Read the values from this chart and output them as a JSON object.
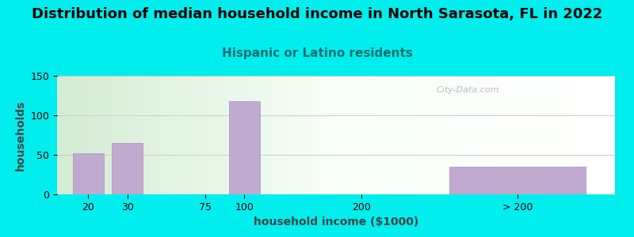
{
  "title": "Distribution of median household income in North Sarasota, FL in 2022",
  "subtitle": "Hispanic or Latino residents",
  "xlabel": "household income ($1000)",
  "ylabel": "households",
  "bg_color": "#00EEEE",
  "bar_color": "#c0aad0",
  "bar_edge_color": "#b090c0",
  "categories": [
    "20",
    "30",
    "75",
    "100",
    "200",
    "> 200"
  ],
  "values": [
    52,
    65,
    0,
    118,
    0,
    35
  ],
  "ylim": [
    0,
    150
  ],
  "yticks": [
    0,
    50,
    100,
    150
  ],
  "title_fontsize": 13,
  "subtitle_fontsize": 11,
  "subtitle_color": "#007070",
  "axis_label_fontsize": 10,
  "tick_fontsize": 9,
  "watermark": "City-Data.com",
  "bar_positions": [
    1,
    2,
    4,
    5,
    8,
    12
  ],
  "bar_widths": [
    0.8,
    0.8,
    0.8,
    0.8,
    0.8,
    3.5
  ],
  "xlim": [
    0.2,
    14.5
  ]
}
